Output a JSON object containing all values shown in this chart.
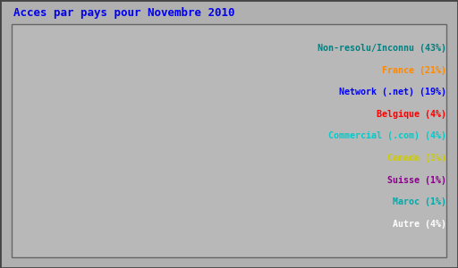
{
  "title": "Acces par pays pour Novembre 2010",
  "title_color": "#0000ee",
  "background_color": "#b0b0b0",
  "labels": [
    "Non-resolu/Inconnu (43%)",
    "France (21%)",
    "Network (.net) (19%)",
    "Belgique (4%)",
    "Commercial (.com) (4%)",
    "Canada (3%)",
    "Suisse (1%)",
    "Maroc (1%)",
    "Autre (4%)"
  ],
  "label_colors": [
    "#008080",
    "#ff8800",
    "#0000ff",
    "#ff0000",
    "#00cccc",
    "#cccc00",
    "#880088",
    "#00aaaa",
    "#ffffff"
  ],
  "values": [
    43,
    21,
    19,
    4,
    4,
    3,
    1,
    1,
    4
  ],
  "pie_colors": [
    "#007070",
    "#ff8800",
    "#0055ff",
    "#dd0000",
    "#00cccc",
    "#eeee00",
    "#880088",
    "#ffffff",
    "#00cc88"
  ],
  "edge_color": "#000000",
  "startangle": 90,
  "counterclock": false
}
